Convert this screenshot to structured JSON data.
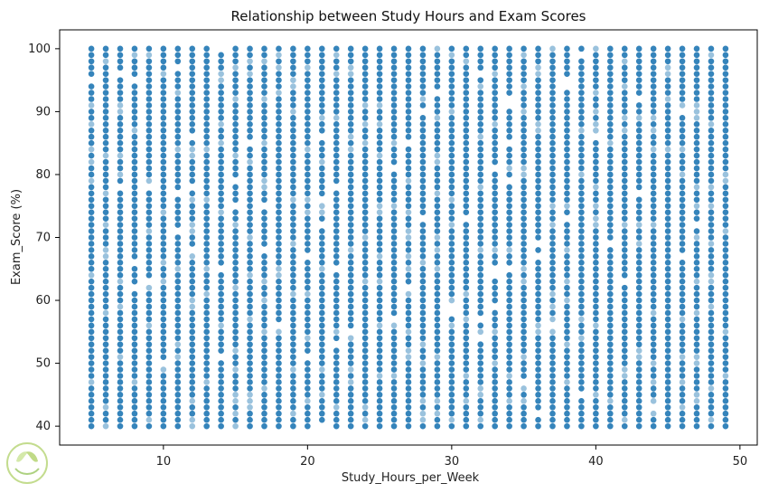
{
  "chart_data": {
    "type": "scatter",
    "title": "Relationship between Study Hours and Exam Scores",
    "xlabel": "Study_Hours_per_Week",
    "ylabel": "Exam_Score (%)",
    "xlim": [
      2.8,
      51.2
    ],
    "ylim": [
      37,
      103
    ],
    "xticks": [
      10,
      20,
      30,
      40,
      50
    ],
    "yticks": [
      40,
      50,
      60,
      70,
      80,
      90,
      100
    ],
    "grid": false,
    "legend": "none",
    "marker_color": "#1f77b4",
    "marker_opacity": 0.5,
    "x_values_range": [
      5,
      49
    ],
    "y_values_range": [
      40,
      100
    ],
    "notes_on_density": "Points occur at every integer hour 5–49 for nearly every integer score 40–100, overlapping heavily."
  },
  "watermark": {
    "logo_icon": "leaf-badge-icon"
  }
}
